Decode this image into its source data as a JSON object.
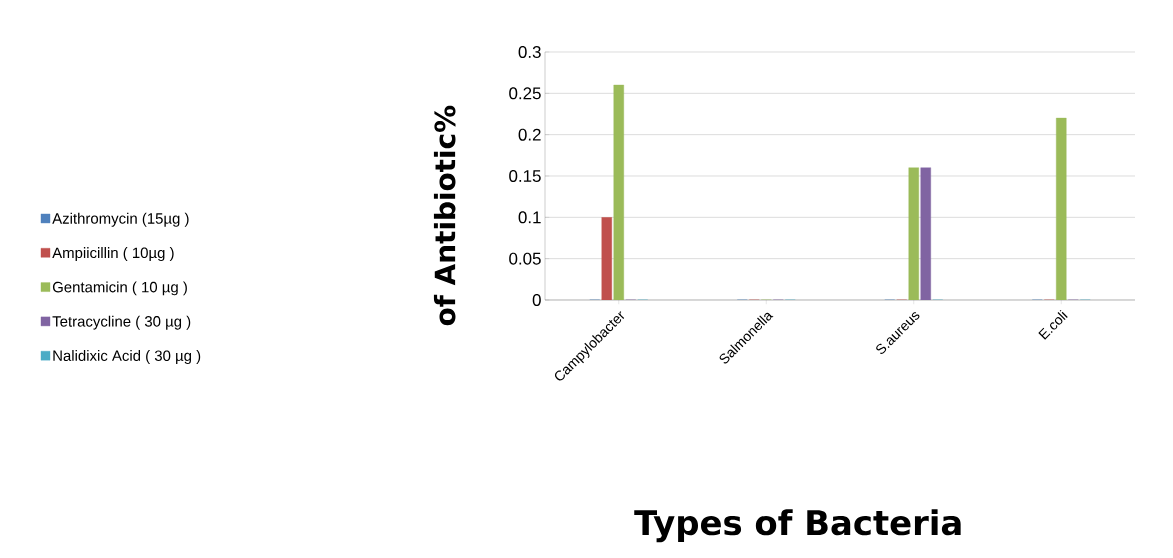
{
  "chart_data": {
    "type": "bar",
    "xlabel": "Types of Bacteria",
    "ylabel": "of Antibiotic%",
    "categories": [
      "Campylobacter",
      "Salmonella",
      "S.aureus",
      "E.coli"
    ],
    "series": [
      {
        "name": "Azithromycin (15µg )",
        "color": "#4f81bd",
        "values": [
          0,
          0,
          0,
          0
        ]
      },
      {
        "name": "Ampiicillin ( 10µg )",
        "color": "#c0504d",
        "values": [
          0.1,
          0,
          0,
          0
        ]
      },
      {
        "name": "Gentamicin ( 10 µg )",
        "color": "#9bbb59",
        "values": [
          0.26,
          0,
          0.16,
          0.22
        ]
      },
      {
        "name": "Tetracycline ( 30 µg )",
        "color": "#8064a2",
        "values": [
          0,
          0,
          0.16,
          0
        ]
      },
      {
        "name": "Nalidixic Acid ( 30 µg )",
        "color": "#4bacc6",
        "values": [
          0,
          0,
          0,
          0
        ]
      }
    ],
    "ylim": [
      0,
      0.3
    ],
    "yticks": [
      0,
      0.05,
      0.1,
      0.15,
      0.2,
      0.25,
      0.3
    ],
    "grid": "y",
    "legend": "left"
  }
}
